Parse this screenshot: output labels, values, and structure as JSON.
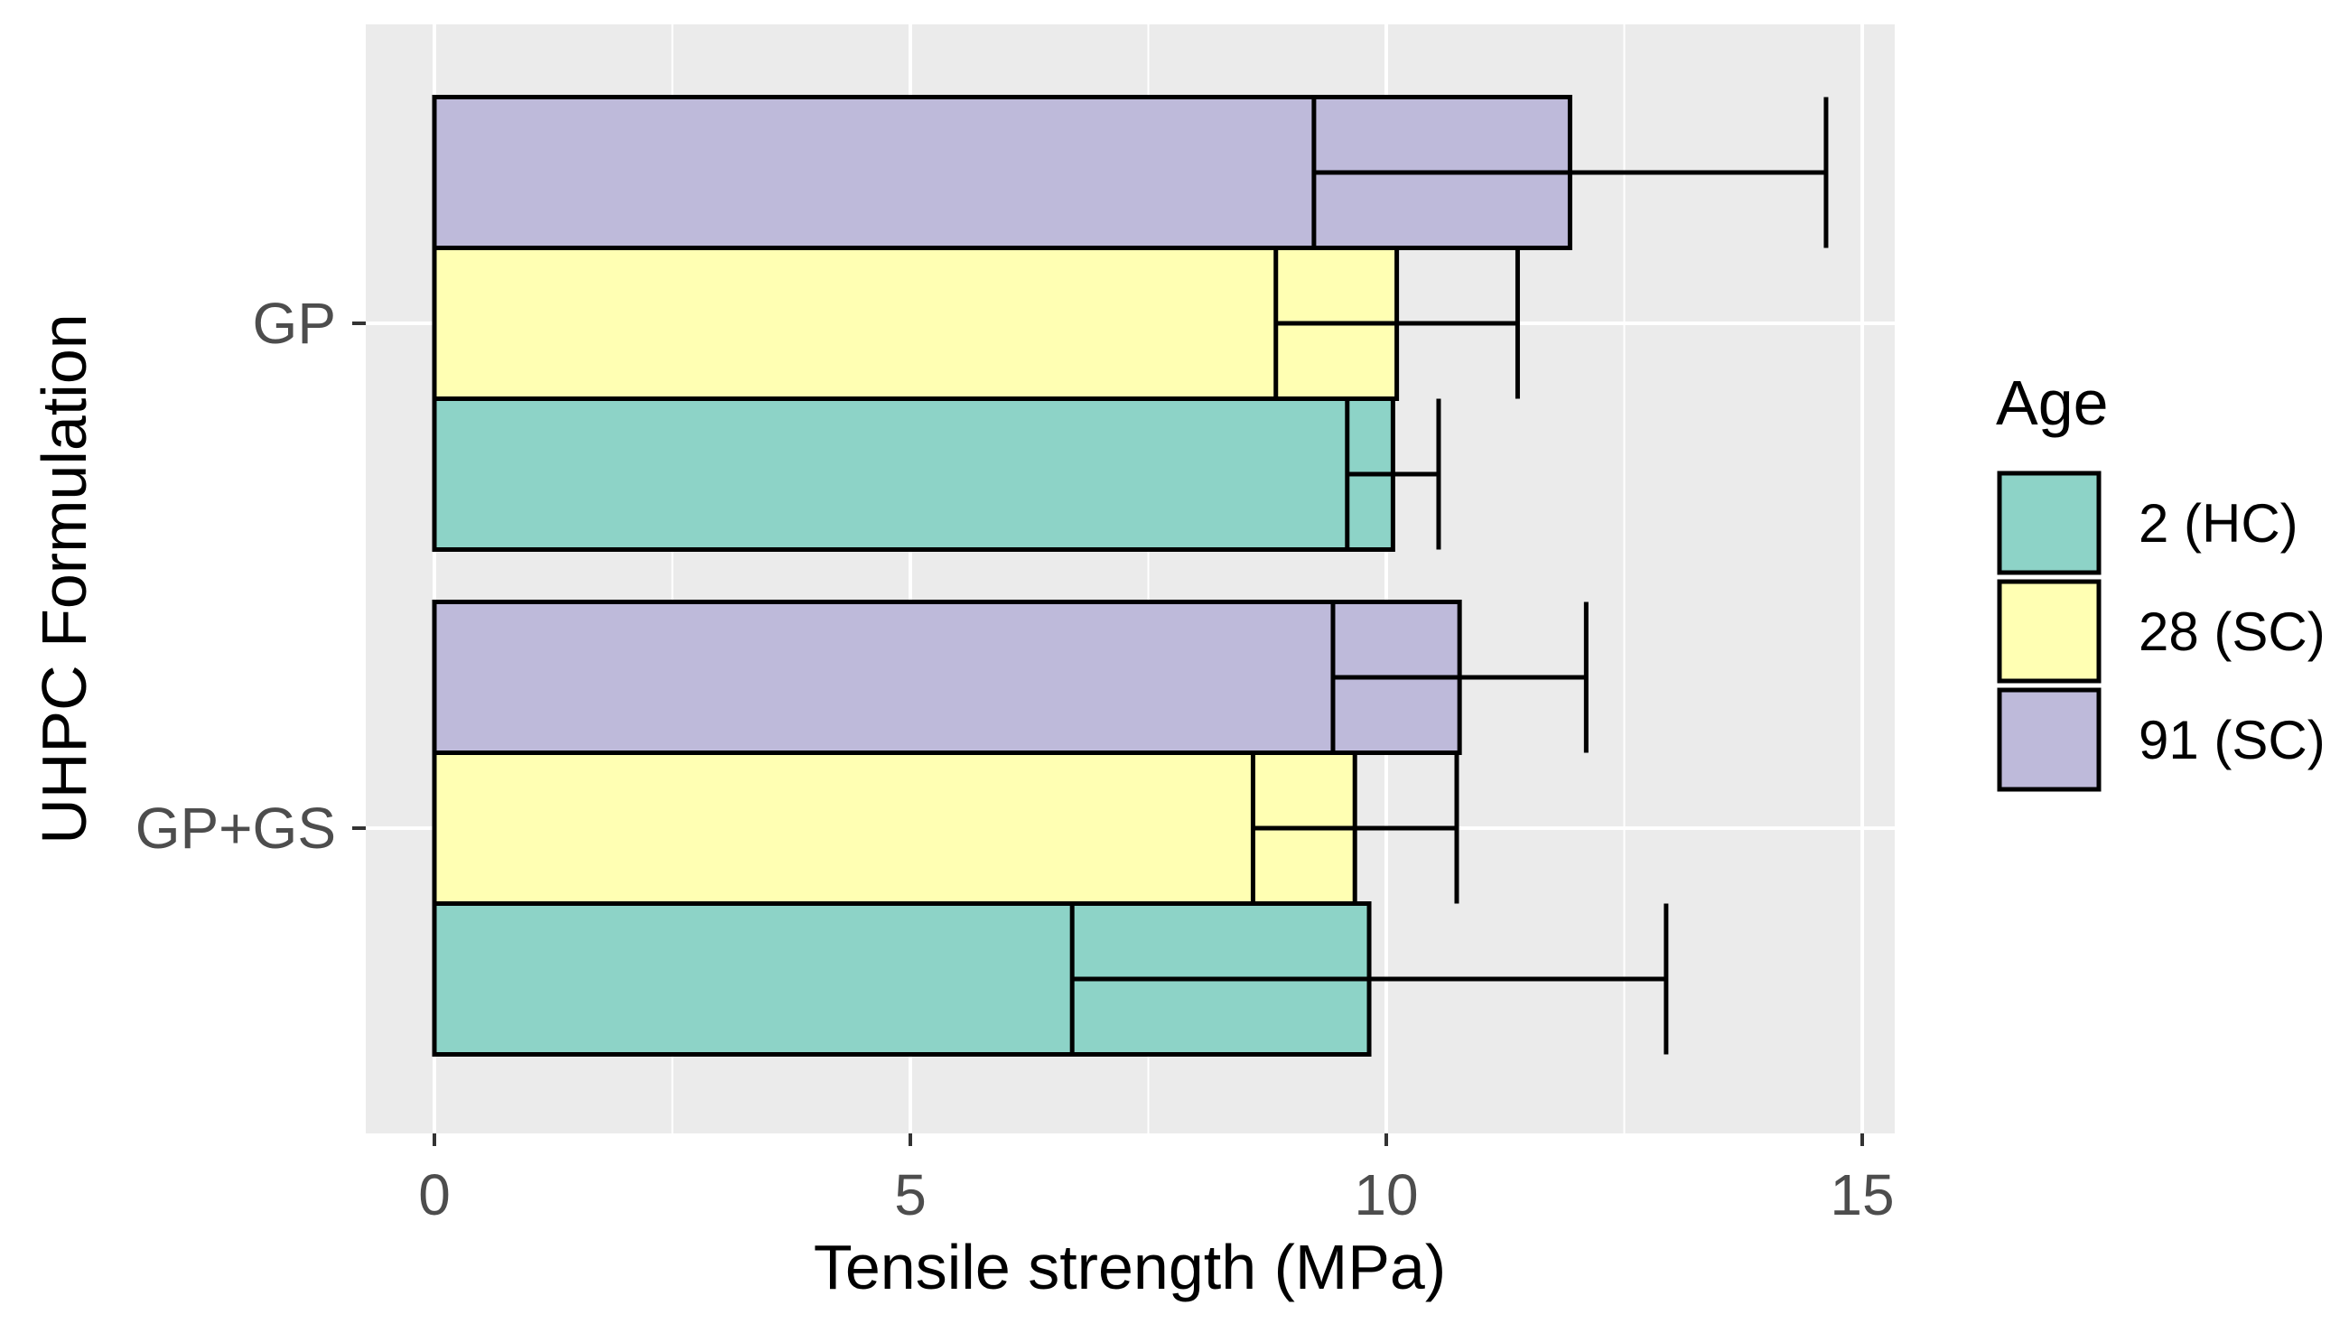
{
  "chart_data": {
    "type": "bar",
    "orientation": "horizontal",
    "title": "",
    "xlabel": "Tensile strength (MPa)",
    "ylabel": "UHPC Formulation",
    "xlim": [
      -0.7,
      15.35
    ],
    "xticks": [
      0,
      5,
      10,
      15
    ],
    "xtick_labels": [
      "0",
      "5",
      "10",
      "15"
    ],
    "grid": true,
    "categories": [
      "GP",
      "GP+GS"
    ],
    "legend": {
      "title": "Age",
      "position": "right",
      "entries": [
        "2 (HC)",
        "28 (SC)",
        "91 (SC)"
      ]
    },
    "series": [
      {
        "name": "2 (HC)",
        "color": "#8DD3C7",
        "values": [
          10.07,
          9.82
        ],
        "error_low": [
          9.59,
          6.7
        ],
        "error_high": [
          10.55,
          12.94
        ]
      },
      {
        "name": "28 (SC)",
        "color": "#FFFFB3",
        "values": [
          10.11,
          9.67
        ],
        "error_low": [
          8.84,
          8.6
        ],
        "error_high": [
          11.38,
          10.74
        ]
      },
      {
        "name": "91 (SC)",
        "color": "#BEBADA",
        "values": [
          11.93,
          10.77
        ],
        "error_low": [
          9.24,
          9.44
        ],
        "error_high": [
          14.62,
          12.1
        ]
      }
    ]
  }
}
